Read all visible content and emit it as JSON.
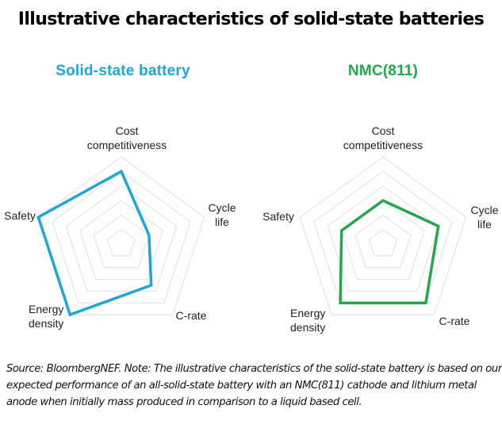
{
  "title": "Illustrative characteristics of solid-state batteries",
  "footer": "Source: BloombergNEF. Note: The illustrative characteristics of the solid-state battery is based on our expected performance of an all-solid-state battery with an NMC(811) cathode and lithium metal anode when initially mass produced in comparison to a liquid based cell.",
  "colors": {
    "solid_state": "#1DA7D8",
    "nmc811": "#22A84A",
    "grid": "#e4e4e4"
  },
  "chart_data": [
    {
      "type": "radar",
      "title": "Solid-state battery",
      "axes": [
        "Cost competitiveness",
        "Cycle life",
        "C-rate",
        "Energy density",
        "Safety"
      ],
      "levels": 6,
      "range": [
        0,
        6
      ],
      "values": [
        5,
        2,
        3.5,
        6,
        6
      ],
      "color": "#1DA7D8",
      "grid": true
    },
    {
      "type": "radar",
      "title": "NMC(811)",
      "axes": [
        "Cost competitiveness",
        "Cycle life",
        "C-rate",
        "Energy density",
        "Safety"
      ],
      "levels": 6,
      "range": [
        0,
        6
      ],
      "values": [
        3,
        4,
        5,
        5,
        3
      ],
      "color": "#22A84A",
      "grid": true
    }
  ],
  "labels": {
    "cost_line1": "Cost",
    "cost_line2": "competitiveness",
    "cycle_line1": "Cycle",
    "cycle_line2": "life",
    "crate": "C-rate",
    "energy_line1": "Energy",
    "energy_line2": "density",
    "safety": "Safety"
  }
}
